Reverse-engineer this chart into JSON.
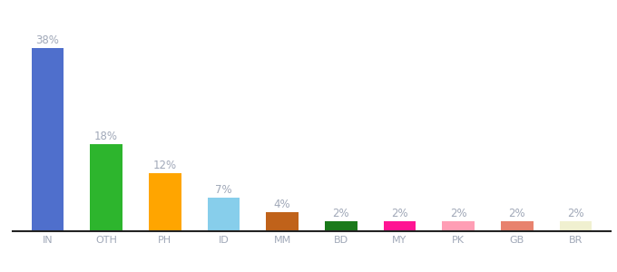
{
  "categories": [
    "IN",
    "OTH",
    "PH",
    "ID",
    "MM",
    "BD",
    "MY",
    "PK",
    "GB",
    "BR"
  ],
  "values": [
    38,
    18,
    12,
    7,
    4,
    2,
    2,
    2,
    2,
    2
  ],
  "bar_colors": [
    "#4f6fcc",
    "#2db52d",
    "#ffa500",
    "#87ceeb",
    "#c0621a",
    "#1a7a1a",
    "#ff1493",
    "#ff9eb5",
    "#e8826e",
    "#f0f0d0"
  ],
  "ylim": [
    0,
    44
  ],
  "label_color": "#a0a8b8",
  "label_fontsize": 8.5,
  "tick_fontsize": 8,
  "background_color": "#ffffff",
  "bottom_spine_color": "#222222",
  "bar_width": 0.55
}
